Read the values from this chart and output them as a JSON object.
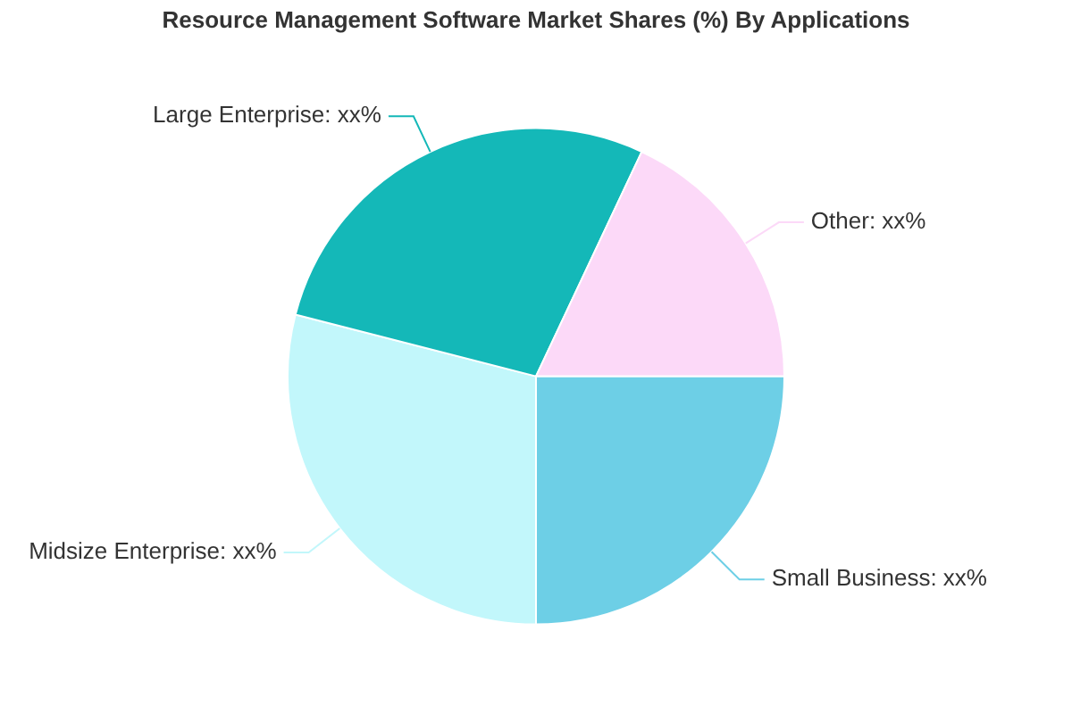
{
  "chart_data": {
    "type": "pie",
    "title": "Resource Management Software Market Shares (%) By Applications",
    "categories": [
      "Small Business",
      "Midsize Enterprise",
      "Large Enterprise",
      "Other"
    ],
    "values": [
      25,
      29,
      28,
      18
    ],
    "value_labels": [
      "xx%",
      "xx%",
      "xx%",
      "xx%"
    ],
    "colors": [
      "#6dcfe6",
      "#c2f7fb",
      "#14b8b8",
      "#fcd9f8"
    ],
    "legend": false
  }
}
